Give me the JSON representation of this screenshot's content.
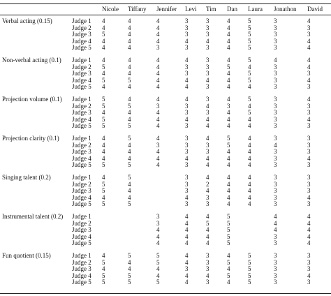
{
  "table": {
    "columns": [
      "Nicole",
      "Tiffany",
      "Jennifer",
      "Levi",
      "Tim",
      "Dan",
      "Laura",
      "Jonathon",
      "David"
    ],
    "groups": [
      {
        "label": "Verbal acting (0.15)",
        "rows": [
          {
            "judge": "Judge 1",
            "values": [
              4,
              4,
              4,
              3,
              3,
              4,
              5,
              3,
              4
            ]
          },
          {
            "judge": "Judge 2",
            "values": [
              4,
              4,
              4,
              3,
              3,
              4,
              5,
              3,
              3
            ]
          },
          {
            "judge": "Judge 3",
            "values": [
              5,
              4,
              4,
              3,
              3,
              4,
              5,
              3,
              3
            ]
          },
          {
            "judge": "Judge 4",
            "values": [
              4,
              4,
              4,
              4,
              4,
              4,
              5,
              3,
              4
            ]
          },
          {
            "judge": "Judge 5",
            "values": [
              4,
              4,
              3,
              3,
              3,
              4,
              5,
              3,
              4
            ]
          }
        ]
      },
      {
        "label": "Non-verbal acting (0.1)",
        "rows": [
          {
            "judge": "Judge 1",
            "values": [
              4,
              4,
              4,
              4,
              3,
              4,
              5,
              4,
              4
            ]
          },
          {
            "judge": "Judge 2",
            "values": [
              5,
              4,
              4,
              3,
              3,
              5,
              4,
              3,
              4
            ]
          },
          {
            "judge": "Judge 3",
            "values": [
              4,
              4,
              4,
              3,
              3,
              4,
              5,
              3,
              3
            ]
          },
          {
            "judge": "Judge 4",
            "values": [
              5,
              5,
              4,
              4,
              4,
              4,
              5,
              3,
              4
            ]
          },
          {
            "judge": "Judge 5",
            "values": [
              4,
              4,
              4,
              4,
              3,
              4,
              4,
              3,
              3
            ]
          }
        ]
      },
      {
        "label": "Projection volume (0.1)",
        "rows": [
          {
            "judge": "Judge 1",
            "values": [
              5,
              4,
              4,
              4,
              3,
              4,
              5,
              3,
              4
            ]
          },
          {
            "judge": "Judge 2",
            "values": [
              5,
              5,
              3,
              3,
              4,
              3,
              4,
              3,
              3
            ]
          },
          {
            "judge": "Judge 3",
            "values": [
              4,
              4,
              4,
              3,
              3,
              4,
              5,
              3,
              3
            ]
          },
          {
            "judge": "Judge 4",
            "values": [
              5,
              4,
              4,
              4,
              4,
              4,
              4,
              3,
              4
            ]
          },
          {
            "judge": "Judge 5",
            "values": [
              5,
              5,
              4,
              3,
              4,
              4,
              4,
              3,
              3
            ]
          }
        ]
      },
      {
        "label": "Projection clarity (0.1)",
        "rows": [
          {
            "judge": "Judge 1",
            "values": [
              4,
              5,
              4,
              3,
              4,
              5,
              4,
              3,
              3
            ]
          },
          {
            "judge": "Judge 2",
            "values": [
              4,
              4,
              3,
              3,
              3,
              5,
              4,
              4,
              3
            ]
          },
          {
            "judge": "Judge 3",
            "values": [
              4,
              4,
              4,
              3,
              3,
              4,
              4,
              3,
              3
            ]
          },
          {
            "judge": "Judge 4",
            "values": [
              4,
              4,
              4,
              4,
              4,
              4,
              4,
              3,
              4
            ]
          },
          {
            "judge": "Judge 5",
            "values": [
              5,
              5,
              4,
              3,
              4,
              4,
              4,
              3,
              3
            ]
          }
        ]
      },
      {
        "label": "Singing talent (0.2)",
        "rows": [
          {
            "judge": "Judge 1",
            "values": [
              4,
              5,
              null,
              3,
              4,
              4,
              4,
              3,
              3
            ]
          },
          {
            "judge": "Judge 2",
            "values": [
              5,
              4,
              null,
              3,
              2,
              4,
              4,
              3,
              3
            ]
          },
          {
            "judge": "Judge 3",
            "values": [
              5,
              4,
              null,
              3,
              4,
              4,
              4,
              3,
              3
            ]
          },
          {
            "judge": "Judge 4",
            "values": [
              4,
              4,
              null,
              4,
              3,
              4,
              4,
              3,
              4
            ]
          },
          {
            "judge": "Judge 5",
            "values": [
              5,
              5,
              null,
              3,
              3,
              4,
              4,
              3,
              3
            ]
          }
        ]
      },
      {
        "label": "Instrumental talent (0.2)",
        "rows": [
          {
            "judge": "Judge 1",
            "values": [
              null,
              null,
              3,
              4,
              4,
              5,
              null,
              4,
              4
            ]
          },
          {
            "judge": "Judge 2",
            "values": [
              null,
              null,
              3,
              4,
              5,
              5,
              null,
              4,
              4
            ]
          },
          {
            "judge": "Judge 3",
            "values": [
              null,
              null,
              4,
              4,
              4,
              5,
              null,
              4,
              4
            ]
          },
          {
            "judge": "Judge 4",
            "values": [
              null,
              null,
              4,
              4,
              4,
              5,
              null,
              3,
              4
            ]
          },
          {
            "judge": "Judge 5",
            "values": [
              null,
              null,
              4,
              4,
              4,
              5,
              null,
              3,
              4
            ]
          }
        ]
      },
      {
        "label": "Fun quotient (0.15)",
        "rows": [
          {
            "judge": "Judge 1",
            "values": [
              4,
              5,
              5,
              4,
              3,
              4,
              5,
              3,
              3
            ]
          },
          {
            "judge": "Judge 2",
            "values": [
              5,
              4,
              5,
              4,
              3,
              5,
              5,
              3,
              3
            ]
          },
          {
            "judge": "Judge 3",
            "values": [
              4,
              4,
              4,
              3,
              3,
              4,
              5,
              3,
              3
            ]
          },
          {
            "judge": "Judge 4",
            "values": [
              5,
              5,
              4,
              4,
              4,
              5,
              5,
              3,
              4
            ]
          },
          {
            "judge": "Judge 5",
            "values": [
              5,
              5,
              5,
              4,
              3,
              4,
              5,
              3,
              3
            ]
          }
        ]
      }
    ]
  }
}
